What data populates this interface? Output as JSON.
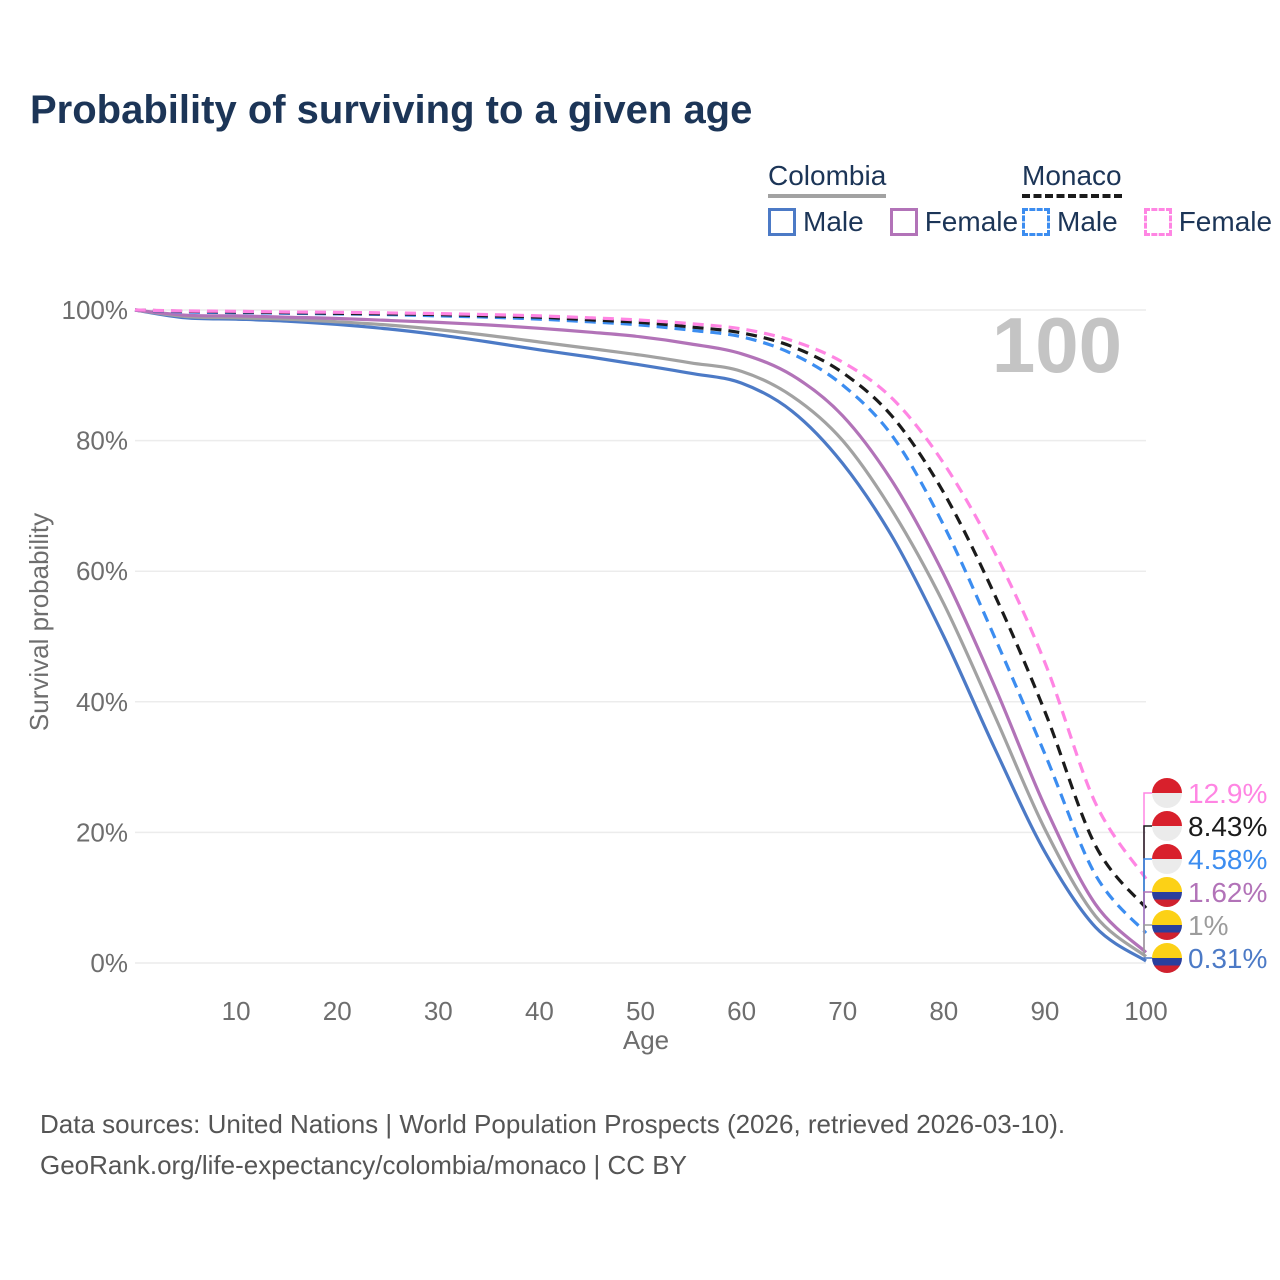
{
  "header": {
    "title": "Probability of surviving to a given age"
  },
  "legend": {
    "colombia": {
      "title": "Colombia",
      "male_label": "Male",
      "female_label": "Female",
      "line_color": "#a2a2a2",
      "male_color": "#4c7ac6",
      "female_color": "#b273b8",
      "style": "solid"
    },
    "monaco": {
      "title": "Monaco",
      "male_label": "Male",
      "female_label": "Female",
      "line_color": "#1b1b1b",
      "male_color": "#3c8df0",
      "female_color": "#ff85e3",
      "style": "dashed"
    }
  },
  "chart_data": {
    "type": "line",
    "title": "Probability of surviving to a given age",
    "xlabel": "Age",
    "ylabel": "Survival probability",
    "watermark": "100",
    "xlim": [
      0,
      100
    ],
    "ylim": [
      0,
      100
    ],
    "grid": "horizontal",
    "x_ticks": [
      10,
      20,
      30,
      40,
      50,
      60,
      70,
      80,
      90,
      100
    ],
    "y_ticks": [
      0,
      20,
      40,
      60,
      80,
      100
    ],
    "y_tick_suffix": "%",
    "x": [
      0,
      5,
      10,
      15,
      20,
      25,
      30,
      35,
      40,
      45,
      50,
      55,
      60,
      65,
      70,
      75,
      80,
      85,
      90,
      95,
      100
    ],
    "series": [
      {
        "name": "Colombia Male",
        "country": "Colombia",
        "sex": "Male",
        "color": "#4c7ac6",
        "dash": "solid",
        "values": [
          100,
          98.8,
          98.6,
          98.3,
          97.8,
          97.1,
          96.2,
          95.1,
          93.9,
          92.8,
          91.6,
          90.3,
          88.8,
          84.5,
          76.5,
          65,
          50,
          33,
          17,
          5.5,
          0.31
        ]
      },
      {
        "name": "Colombia Both sexes",
        "country": "Colombia",
        "sex": "Both sexes",
        "color": "#a2a2a2",
        "dash": "solid",
        "values": [
          100,
          99,
          98.8,
          98.6,
          98.2,
          97.7,
          97,
          96.1,
          95.1,
          94.1,
          93.1,
          91.9,
          90.6,
          86.8,
          80,
          69,
          55,
          38,
          20.5,
          7.2,
          1
        ]
      },
      {
        "name": "Colombia Female",
        "country": "Colombia",
        "sex": "Female",
        "color": "#b273b8",
        "dash": "solid",
        "values": [
          100,
          99.2,
          99.1,
          98.9,
          98.7,
          98.4,
          98.1,
          97.7,
          97.2,
          96.6,
          95.9,
          94.8,
          93.3,
          90,
          83.8,
          73.5,
          59.5,
          42.5,
          24,
          9,
          1.62
        ]
      },
      {
        "name": "Monaco Male",
        "country": "Monaco",
        "sex": "Male",
        "color": "#3c8df0",
        "dash": "dashed",
        "values": [
          100,
          99.7,
          99.6,
          99.5,
          99.4,
          99.3,
          99.1,
          98.9,
          98.6,
          98.2,
          97.7,
          96.9,
          95.9,
          93.3,
          88.5,
          80.5,
          67,
          50,
          32,
          13.5,
          4.58
        ]
      },
      {
        "name": "Monaco Both sexes",
        "country": "Monaco",
        "sex": "Both sexes",
        "color": "#1b1b1b",
        "dash": "dashed",
        "values": [
          100,
          99.8,
          99.7,
          99.6,
          99.5,
          99.4,
          99.3,
          99.1,
          98.9,
          98.5,
          98.1,
          97.4,
          96.5,
          94.4,
          90.4,
          83.5,
          72,
          56.5,
          38.5,
          18,
          8.43
        ]
      },
      {
        "name": "Monaco Female",
        "country": "Monaco",
        "sex": "Female",
        "color": "#ff85e3",
        "dash": "dashed",
        "values": [
          100,
          99.85,
          99.8,
          99.7,
          99.65,
          99.55,
          99.45,
          99.3,
          99.1,
          98.8,
          98.45,
          97.9,
          97.1,
          95.3,
          92,
          86.3,
          76.5,
          63,
          46,
          24.5,
          12.9
        ]
      }
    ],
    "end_labels": [
      {
        "label": "12.9%",
        "pct": 12.9,
        "color": "#ff85e3",
        "flag": "monaco"
      },
      {
        "label": "8.43%",
        "pct": 8.43,
        "color": "#1b1b1b",
        "flag": "monaco"
      },
      {
        "label": "4.58%",
        "pct": 4.58,
        "color": "#3c8df0",
        "flag": "monaco"
      },
      {
        "label": "1.62%",
        "pct": 1.62,
        "color": "#b273b8",
        "flag": "colombia"
      },
      {
        "label": "1%",
        "pct": 1.0,
        "color": "#9c9c9c",
        "flag": "colombia"
      },
      {
        "label": "0.31%",
        "pct": 0.31,
        "color": "#4c7ac6",
        "flag": "colombia"
      }
    ],
    "flag_colors": {
      "monaco": [
        "#d8202c",
        "#ebebeb"
      ],
      "colombia": [
        "#fcd116",
        "#2a3f9d",
        "#d0212e"
      ]
    }
  },
  "footer": {
    "line1": "Data sources: United Nations | World Population Prospects (2026, retrieved 2026-03-10).",
    "line2": "GeoRank.org/life-expectancy/colombia/monaco | CC BY"
  }
}
